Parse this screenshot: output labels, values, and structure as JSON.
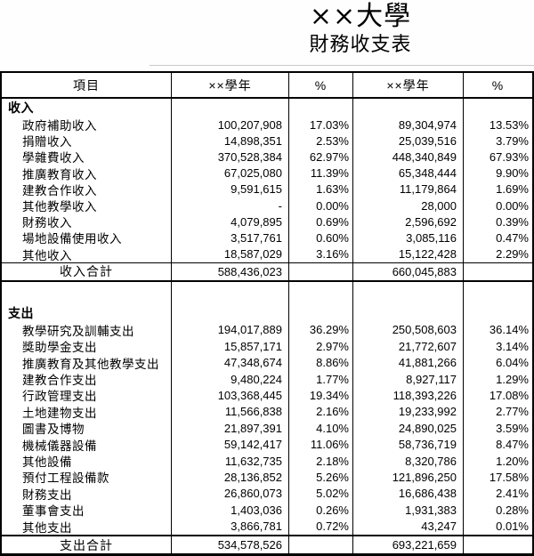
{
  "title": {
    "line1": "××大學",
    "line2": "財務收支表"
  },
  "colors": {
    "border": "#000000",
    "background": "#ffffff"
  },
  "chart_data": {
    "type": "table",
    "title": "××大學 財務收支表",
    "columns": [
      "項目",
      "××學年",
      "%",
      "××學年",
      "%"
    ]
  },
  "table": {
    "headers": {
      "item": "項目",
      "year1": "××學年",
      "pct1": "%",
      "year2": "××學年",
      "pct2": "%"
    },
    "income": {
      "section_label": "收入",
      "rows": [
        {
          "label": "政府補助收入",
          "a1": "100,207,908",
          "p1": "17.03%",
          "a2": "89,304,974",
          "p2": "13.53%"
        },
        {
          "label": "捐贈收入",
          "a1": "14,898,351",
          "p1": "2.53%",
          "a2": "25,039,516",
          "p2": "3.79%"
        },
        {
          "label": "學雜費收入",
          "a1": "370,528,384",
          "p1": "62.97%",
          "a2": "448,340,849",
          "p2": "67.93%"
        },
        {
          "label": "推廣教育收入",
          "a1": "67,025,080",
          "p1": "11.39%",
          "a2": "65,348,444",
          "p2": "9.90%"
        },
        {
          "label": "建教合作收入",
          "a1": "9,591,615",
          "p1": "1.63%",
          "a2": "11,179,864",
          "p2": "1.69%"
        },
        {
          "label": "其他教學收入",
          "a1": "-",
          "p1": "0.00%",
          "a2": "28,000",
          "p2": "0.00%"
        },
        {
          "label": "財務收入",
          "a1": "4,079,895",
          "p1": "0.69%",
          "a2": "2,596,692",
          "p2": "0.39%"
        },
        {
          "label": "場地設備使用收入",
          "a1": "3,517,761",
          "p1": "0.60%",
          "a2": "3,085,116",
          "p2": "0.47%"
        },
        {
          "label": "其他收入",
          "a1": "18,587,029",
          "p1": "3.16%",
          "a2": "15,122,428",
          "p2": "2.29%"
        }
      ],
      "total": {
        "label": "收入合計",
        "a1": "588,436,023",
        "p1": "",
        "a2": "660,045,883",
        "p2": ""
      }
    },
    "expense": {
      "section_label": "支出",
      "rows": [
        {
          "label": "教學研究及訓輔支出",
          "a1": "194,017,889",
          "p1": "36.29%",
          "a2": "250,508,603",
          "p2": "36.14%"
        },
        {
          "label": "獎助學金支出",
          "a1": "15,857,171",
          "p1": "2.97%",
          "a2": "21,772,607",
          "p2": "3.14%"
        },
        {
          "label": "推廣教育及其他教學支出",
          "a1": "47,348,674",
          "p1": "8.86%",
          "a2": "41,881,266",
          "p2": "6.04%"
        },
        {
          "label": "建教合作支出",
          "a1": "9,480,224",
          "p1": "1.77%",
          "a2": "8,927,117",
          "p2": "1.29%"
        },
        {
          "label": "行政管理支出",
          "a1": "103,368,445",
          "p1": "19.34%",
          "a2": "118,393,226",
          "p2": "17.08%"
        },
        {
          "label": "土地建物支出",
          "a1": "11,566,838",
          "p1": "2.16%",
          "a2": "19,233,992",
          "p2": "2.77%"
        },
        {
          "label": "圖書及博物",
          "a1": "21,897,391",
          "p1": "4.10%",
          "a2": "24,890,025",
          "p2": "3.59%"
        },
        {
          "label": "機械儀器設備",
          "a1": "59,142,417",
          "p1": "11.06%",
          "a2": "58,736,719",
          "p2": "8.47%"
        },
        {
          "label": "其他設備",
          "a1": "11,632,735",
          "p1": "2.18%",
          "a2": "8,320,786",
          "p2": "1.20%"
        },
        {
          "label": "預付工程設備款",
          "a1": "28,136,852",
          "p1": "5.26%",
          "a2": "121,896,250",
          "p2": "17.58%"
        },
        {
          "label": "財務支出",
          "a1": "26,860,073",
          "p1": "5.02%",
          "a2": "16,686,438",
          "p2": "2.41%"
        },
        {
          "label": "董事會支出",
          "a1": "1,403,036",
          "p1": "0.26%",
          "a2": "1,931,383",
          "p2": "0.28%"
        },
        {
          "label": "其他支出",
          "a1": "3,866,781",
          "p1": "0.72%",
          "a2": "43,247",
          "p2": "0.01%"
        }
      ],
      "total": {
        "label": "支出合計",
        "a1": "534,578,526",
        "p1": "",
        "a2": "693,221,659",
        "p2": ""
      }
    }
  }
}
